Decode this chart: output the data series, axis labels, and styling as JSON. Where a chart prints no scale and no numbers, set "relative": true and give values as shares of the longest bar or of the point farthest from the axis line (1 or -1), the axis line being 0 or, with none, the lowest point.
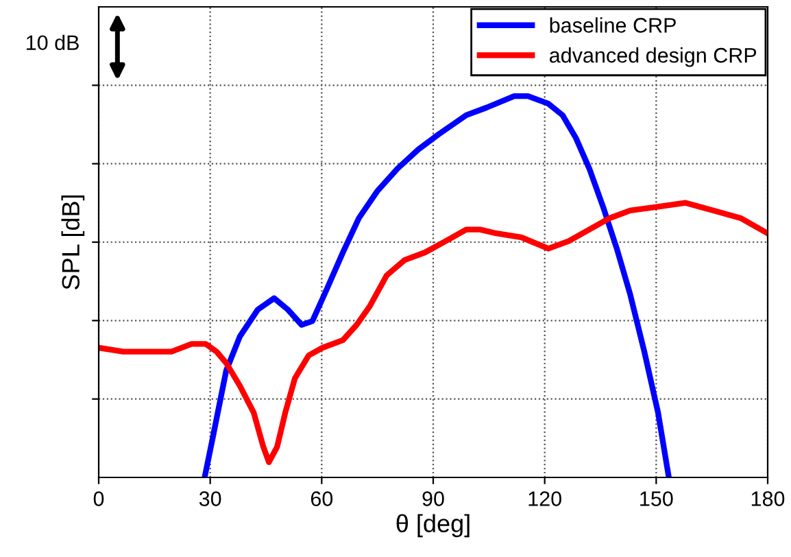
{
  "chart_data": {
    "type": "line",
    "xlabel": "θ [deg]",
    "ylabel": "SPL [dB]",
    "relative": true,
    "xlim": [
      0,
      180
    ],
    "xticks": [
      0,
      30,
      60,
      90,
      120,
      150,
      180
    ],
    "grid": true,
    "legend": "top right",
    "tick_labels": "x",
    "annotations": [
      "10 dB"
    ],
    "series": [
      {
        "name": "baseline CRP",
        "color": "#0000ff",
        "x": [
          28.5,
          30.6,
          34.3,
          38,
          42.8,
          47.2,
          50.9,
          54.6,
          57.5,
          61.2,
          65.7,
          70,
          74.9,
          80.4,
          86,
          91.5,
          98.9,
          104.4,
          111.8,
          115.5,
          121,
          124.8,
          128.4,
          132,
          135.7,
          139.4,
          143,
          146.8,
          150.5,
          153.4
        ],
        "values": [
          0,
          0.1,
          0.28,
          0.37,
          0.44,
          0.47,
          0.44,
          0.4,
          0.41,
          0.49,
          0.59,
          0.68,
          0.75,
          0.81,
          0.86,
          0.9,
          0.95,
          0.97,
          1.0,
          1.0,
          0.98,
          0.95,
          0.89,
          0.81,
          0.71,
          0.6,
          0.48,
          0.33,
          0.17,
          0
        ]
      },
      {
        "name": "advanced design CRP",
        "color": "#ff0000",
        "x": [
          0,
          6.6,
          14,
          19.6,
          25,
          28.8,
          31.7,
          34.3,
          38,
          41.7,
          44.3,
          45.8,
          48,
          50.2,
          52.8,
          56.5,
          60.2,
          65.7,
          69.4,
          73,
          77.5,
          82.3,
          87.8,
          93.4,
          98.9,
          102.6,
          107,
          113.6,
          121,
          126.5,
          132,
          137.5,
          143,
          150.5,
          157.9,
          165.3,
          172.7,
          180
        ],
        "values": [
          0.34,
          0.33,
          0.33,
          0.33,
          0.35,
          0.35,
          0.33,
          0.3,
          0.24,
          0.17,
          0.08,
          0.04,
          0.08,
          0.17,
          0.26,
          0.32,
          0.34,
          0.36,
          0.4,
          0.45,
          0.53,
          0.57,
          0.59,
          0.62,
          0.65,
          0.65,
          0.64,
          0.63,
          0.6,
          0.62,
          0.65,
          0.68,
          0.7,
          0.71,
          0.72,
          0.7,
          0.68,
          0.64
        ]
      }
    ]
  }
}
